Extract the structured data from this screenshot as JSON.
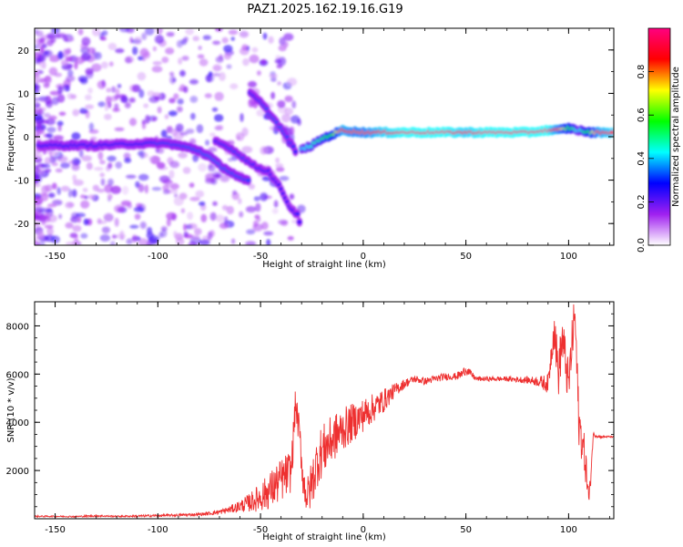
{
  "title": "PAZ1.2025.162.19.16.G19",
  "chart_data": [
    {
      "type": "heatmap",
      "xlabel": "Height of straight line (km)",
      "ylabel": "Frequency (Hz)",
      "xlim": [
        -160,
        122
      ],
      "ylim": [
        -25,
        25
      ],
      "xticks": [
        -150,
        -100,
        -50,
        0,
        50,
        100
      ],
      "yticks": [
        -20,
        -10,
        0,
        10,
        20
      ],
      "colorbar": {
        "label": "Normalized spectral amplitude",
        "range": [
          0.0,
          1.0
        ],
        "ticks": [
          "0.0",
          "0.2",
          "0.4",
          "0.6",
          "0.8"
        ],
        "colors": [
          "#ffffff",
          "#a020f0",
          "#0000ff",
          "#00ffff",
          "#00ff00",
          "#ffff00",
          "#ff0000",
          "#ff0080"
        ]
      },
      "main_trace": [
        {
          "x": -158,
          "y": -2,
          "a": 0.3
        },
        {
          "x": -150,
          "y": -2,
          "a": 0.3
        },
        {
          "x": -140,
          "y": -2,
          "a": 0.3
        },
        {
          "x": -130,
          "y": -2,
          "a": 0.3
        },
        {
          "x": -120,
          "y": -1.8,
          "a": 0.3
        },
        {
          "x": -110,
          "y": -1.6,
          "a": 0.3
        },
        {
          "x": -100,
          "y": -1.5,
          "a": 0.32
        },
        {
          "x": -95,
          "y": -1.6,
          "a": 0.32
        },
        {
          "x": -90,
          "y": -2,
          "a": 0.32
        },
        {
          "x": -85,
          "y": -2.5,
          "a": 0.33
        },
        {
          "x": -80,
          "y": -3.2,
          "a": 0.33
        },
        {
          "x": -75,
          "y": -4.5,
          "a": 0.34
        },
        {
          "x": -70,
          "y": -6.5,
          "a": 0.34
        },
        {
          "x": -65,
          "y": -8,
          "a": 0.33
        },
        {
          "x": -60,
          "y": -9.5,
          "a": 0.33
        },
        {
          "x": -55,
          "y": -10.5,
          "a": 0.32
        }
      ],
      "branch_upper": [
        {
          "x": -55,
          "y": 10,
          "a": 0.3
        },
        {
          "x": -50,
          "y": 8,
          "a": 0.32
        },
        {
          "x": -45,
          "y": 5,
          "a": 0.33
        },
        {
          "x": -40,
          "y": 2,
          "a": 0.33
        },
        {
          "x": -36,
          "y": -1,
          "a": 0.32
        },
        {
          "x": -32,
          "y": -4,
          "a": 0.3
        }
      ],
      "branch_lower": [
        {
          "x": -72,
          "y": -1,
          "a": 0.3
        },
        {
          "x": -65,
          "y": -2.5,
          "a": 0.32
        },
        {
          "x": -58,
          "y": -5,
          "a": 0.32
        },
        {
          "x": -52,
          "y": -7,
          "a": 0.3
        },
        {
          "x": -46,
          "y": -8,
          "a": 0.3
        },
        {
          "x": -40,
          "y": -12,
          "a": 0.28
        },
        {
          "x": -36,
          "y": -16,
          "a": 0.28
        },
        {
          "x": -32,
          "y": -18,
          "a": 0.3
        },
        {
          "x": -30,
          "y": -21,
          "a": 0.27
        }
      ],
      "upper_trace": [
        {
          "x": -30,
          "y": -3,
          "a": 0.4
        },
        {
          "x": -25,
          "y": -2,
          "a": 0.45
        },
        {
          "x": -20,
          "y": -0.5,
          "a": 0.5
        },
        {
          "x": -15,
          "y": 0.5,
          "a": 0.6
        },
        {
          "x": -10,
          "y": 1.5,
          "a": 0.85
        },
        {
          "x": -5,
          "y": 1.2,
          "a": 0.8
        },
        {
          "x": 0,
          "y": 1,
          "a": 0.8
        },
        {
          "x": 10,
          "y": 1,
          "a": 0.9
        },
        {
          "x": 20,
          "y": 1,
          "a": 0.95
        },
        {
          "x": 30,
          "y": 1,
          "a": 0.95
        },
        {
          "x": 40,
          "y": 1,
          "a": 0.95
        },
        {
          "x": 50,
          "y": 1,
          "a": 0.9
        },
        {
          "x": 60,
          "y": 1,
          "a": 0.95
        },
        {
          "x": 70,
          "y": 1,
          "a": 0.95
        },
        {
          "x": 80,
          "y": 1,
          "a": 0.95
        },
        {
          "x": 90,
          "y": 1.5,
          "a": 0.95
        },
        {
          "x": 95,
          "y": 1.5,
          "a": 0.8
        },
        {
          "x": 100,
          "y": 2,
          "a": 0.6
        },
        {
          "x": 105,
          "y": 1.5,
          "a": 0.4
        },
        {
          "x": 110,
          "y": 1,
          "a": 0.6
        },
        {
          "x": 115,
          "y": 1,
          "a": 0.85
        },
        {
          "x": 122,
          "y": 1,
          "a": 0.9
        }
      ]
    },
    {
      "type": "line",
      "xlabel": "Height of straight line (km)",
      "ylabel": "SNR (10 * v/v)",
      "xlim": [
        -160,
        122
      ],
      "ylim": [
        0,
        9000
      ],
      "xticks": [
        -150,
        -100,
        -50,
        0,
        50,
        100
      ],
      "yticks": [
        2000,
        4000,
        6000,
        8000
      ],
      "color": "#ee3030",
      "x": [
        -160,
        -150,
        -140,
        -130,
        -120,
        -110,
        -100,
        -90,
        -80,
        -75,
        -70,
        -65,
        -60,
        -55,
        -50,
        -45,
        -40,
        -35,
        -33,
        -31,
        -29,
        -27,
        -25,
        -22,
        -20,
        -15,
        -10,
        -5,
        0,
        5,
        10,
        15,
        20,
        25,
        30,
        35,
        40,
        45,
        48,
        50,
        55,
        60,
        70,
        80,
        85,
        90,
        93,
        95,
        97,
        100,
        103,
        105,
        108,
        110,
        112,
        115,
        122
      ],
      "values": [
        100,
        100,
        90,
        120,
        100,
        110,
        130,
        150,
        180,
        220,
        280,
        380,
        520,
        680,
        900,
        1200,
        1600,
        2000,
        4800,
        3500,
        1400,
        900,
        1500,
        2500,
        2800,
        3300,
        3700,
        4000,
        4300,
        4600,
        4900,
        5300,
        5600,
        5800,
        5700,
        5800,
        5900,
        5900,
        6000,
        6200,
        5800,
        5800,
        5800,
        5750,
        5700,
        5600,
        8000,
        6000,
        7500,
        5500,
        8600,
        4000,
        2500,
        700,
        3500,
        3400,
        3400
      ],
      "amp": [
        30,
        30,
        30,
        40,
        30,
        40,
        50,
        50,
        60,
        80,
        100,
        150,
        250,
        400,
        600,
        800,
        900,
        900,
        600,
        700,
        800,
        900,
        1000,
        1100,
        1100,
        1000,
        900,
        800,
        700,
        600,
        500,
        300,
        200,
        150,
        150,
        150,
        150,
        150,
        200,
        200,
        100,
        100,
        100,
        150,
        200,
        400,
        800,
        1000,
        1000,
        1000,
        1000,
        1000,
        800,
        500,
        100,
        50,
        30
      ]
    }
  ]
}
